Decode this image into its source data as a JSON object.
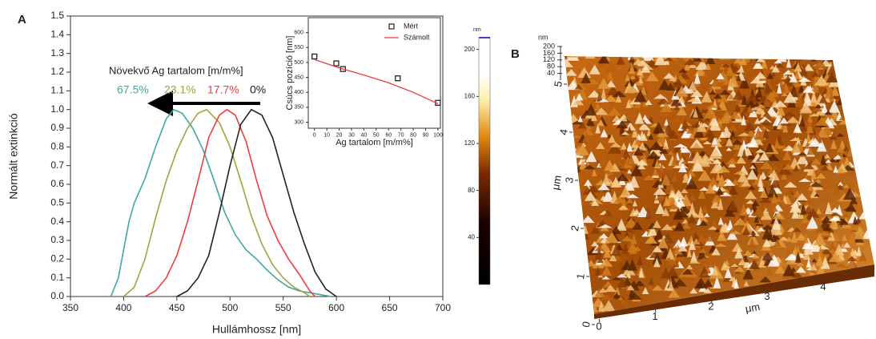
{
  "chart_data": [
    {
      "type": "line",
      "panel": "A",
      "xlabel": "Hullámhossz [nm]",
      "ylabel": "Normált extinkció",
      "xlim": [
        350,
        700
      ],
      "xticks": [
        350,
        400,
        450,
        500,
        550,
        600,
        650,
        700
      ],
      "ylim": [
        0,
        1.5
      ],
      "yticks": [
        {
          "value": 0,
          "label": "0.0"
        },
        {
          "value": 0.1,
          "label": "0.1"
        },
        {
          "value": 0.2,
          "label": "0.2"
        },
        {
          "value": 0.3,
          "label": "0.3"
        },
        {
          "value": 0.4,
          "label": "0.4"
        },
        {
          "value": 0.5,
          "label": "0.5"
        },
        {
          "value": 0.6,
          "label": "0.6"
        },
        {
          "value": 0.7,
          "label": "0.7"
        },
        {
          "value": 0.8,
          "label": "0.8"
        },
        {
          "value": 0.9,
          "label": "0.9"
        },
        {
          "value": 1,
          "label": "1.0"
        },
        {
          "value": 1.1,
          "label": "1.1"
        },
        {
          "value": 1.2,
          "label": "1.2"
        },
        {
          "value": 1.3,
          "label": "1.3"
        },
        {
          "value": 1.4,
          "label": "1.4"
        },
        {
          "value": 1.5,
          "label": "1.5"
        }
      ],
      "annotation": "Növekvő Ag tartalom [m/m%]",
      "series": [
        {
          "name": "67.5%",
          "color": "#3ea8a3",
          "x": [
            388,
            395,
            400,
            405,
            410,
            420,
            430,
            440,
            447,
            455,
            465,
            475,
            485,
            495,
            505,
            515,
            525,
            535,
            545,
            555,
            565,
            575,
            585,
            595
          ],
          "values": [
            0,
            0.1,
            0.25,
            0.4,
            0.5,
            0.63,
            0.8,
            0.95,
            1.0,
            0.98,
            0.9,
            0.78,
            0.62,
            0.45,
            0.33,
            0.25,
            0.2,
            0.14,
            0.09,
            0.05,
            0.03,
            0.02,
            0.01,
            0
          ]
        },
        {
          "name": "23.1%",
          "color": "#a7a23a",
          "x": [
            400,
            410,
            420,
            430,
            440,
            450,
            460,
            470,
            478,
            490,
            500,
            510,
            520,
            530,
            540,
            550,
            560,
            570,
            575
          ],
          "values": [
            0,
            0.05,
            0.2,
            0.42,
            0.62,
            0.78,
            0.9,
            0.98,
            1.0,
            0.93,
            0.8,
            0.62,
            0.43,
            0.28,
            0.17,
            0.1,
            0.05,
            0.02,
            0
          ]
        },
        {
          "name": "17.7%",
          "color": "#f03c3c",
          "x": [
            420,
            430,
            440,
            450,
            460,
            470,
            480,
            490,
            497,
            505,
            515,
            525,
            535,
            545,
            555,
            565,
            575,
            580
          ],
          "values": [
            0,
            0.03,
            0.1,
            0.22,
            0.4,
            0.62,
            0.85,
            0.97,
            1.0,
            0.97,
            0.83,
            0.62,
            0.43,
            0.3,
            0.2,
            0.12,
            0.03,
            0
          ]
        },
        {
          "name": "0%",
          "color": "#222222",
          "x": [
            450,
            460,
            470,
            480,
            490,
            500,
            510,
            520,
            530,
            540,
            550,
            560,
            570,
            580,
            590,
            600
          ],
          "values": [
            0,
            0.03,
            0.1,
            0.22,
            0.45,
            0.7,
            0.92,
            1.0,
            0.97,
            0.85,
            0.65,
            0.45,
            0.28,
            0.13,
            0.04,
            0
          ]
        }
      ]
    },
    {
      "type": "line",
      "xlabel": "Ag tartalom [m/m%]",
      "ylabel": "Csúcs pozíció [nm]",
      "xlim": [
        -5,
        102
      ],
      "xticks": [
        0,
        10,
        20,
        30,
        40,
        50,
        60,
        70,
        80,
        90,
        100
      ],
      "ylim": [
        280,
        650
      ],
      "yticks": [
        300,
        350,
        400,
        450,
        500,
        550,
        600
      ],
      "series": [
        {
          "name": "Mért",
          "type": "scatter",
          "color": "#222222",
          "x": [
            0,
            17.7,
            23.1,
            67.5,
            100
          ],
          "values": [
            520,
            497,
            478,
            447,
            365
          ]
        },
        {
          "name": "Számolt",
          "type": "line",
          "color": "#f03c3c",
          "x": [
            0,
            20,
            40,
            60,
            80,
            100
          ],
          "values": [
            510,
            482,
            458,
            432,
            400,
            362
          ]
        }
      ]
    },
    {
      "type": "colorbar",
      "label": "nm",
      "ylim": [
        0,
        210
      ],
      "yticks": [
        40,
        80,
        120,
        160,
        200
      ]
    },
    {
      "type": "surface",
      "panel": "B",
      "xlabel": "μm",
      "ylabel": "μm",
      "zlabel": "nm",
      "xlim": [
        0,
        5
      ],
      "xticks": [
        0,
        1,
        2,
        3,
        4
      ],
      "ylim": [
        0,
        5
      ],
      "yticks": [
        0,
        1,
        2,
        3,
        4,
        5
      ],
      "zlim": [
        0,
        200
      ],
      "zticks": [
        40,
        80,
        120,
        160,
        200
      ]
    }
  ]
}
